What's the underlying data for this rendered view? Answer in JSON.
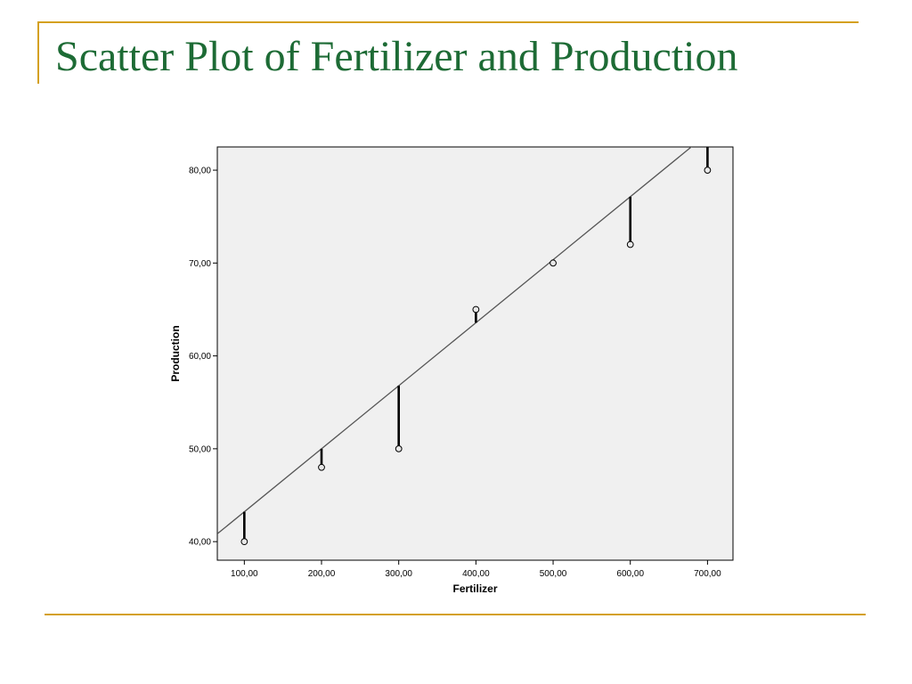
{
  "slide": {
    "title": "Scatter Plot of Fertilizer and Production"
  },
  "colors": {
    "title_text": "#1d6b35",
    "accent_rule": "#d4a020",
    "plot_background": "#f0f0f0",
    "point_fill": "#e8e8e8",
    "residual": "#000000",
    "fit_line": "#555555"
  },
  "chart_data": {
    "type": "scatter",
    "title": "",
    "xlabel": "Fertilizer",
    "ylabel": "Production",
    "xlim": [
      65,
      733
    ],
    "ylim": [
      38,
      82.5
    ],
    "x_ticks": [
      100,
      200,
      300,
      400,
      500,
      600,
      700
    ],
    "x_tick_labels": [
      "100,00",
      "200,00",
      "300,00",
      "400,00",
      "500,00",
      "600,00",
      "700,00"
    ],
    "y_ticks": [
      40,
      50,
      60,
      70,
      80
    ],
    "y_tick_labels": [
      "40,00",
      "50,00",
      "60,00",
      "70,00",
      "80,00"
    ],
    "grid": false,
    "series": [
      {
        "x": [
          100,
          200,
          300,
          400,
          500,
          600,
          700
        ],
        "y": [
          40,
          48,
          50,
          65,
          70,
          72,
          80
        ]
      }
    ],
    "fit_line": {
      "slope": 0.0678571,
      "intercept": 36.428571
    },
    "residual_lines": true
  }
}
